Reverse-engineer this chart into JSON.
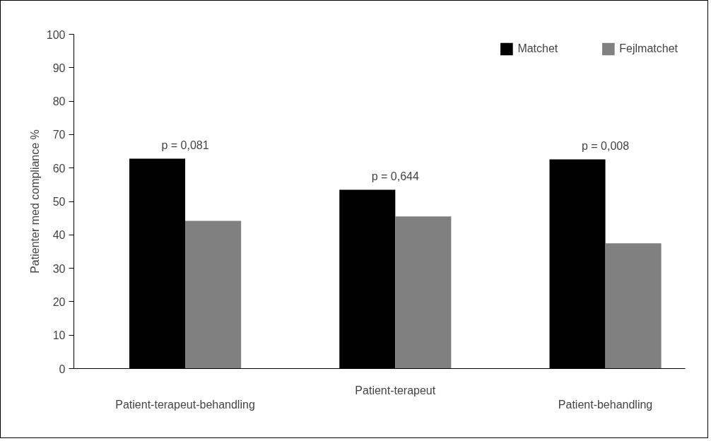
{
  "chart_data": {
    "type": "bar",
    "ylabel": "Patienter med compliance %",
    "categories": [
      "Patient-terapeut-behandling",
      "Patient-terapeut",
      "Patient-behandling"
    ],
    "series": [
      {
        "name": "Matchet",
        "color": "#000000",
        "values": [
          62.8,
          53.5,
          62.6
        ]
      },
      {
        "name": "Fejlmatchet",
        "color": "#808080",
        "values": [
          44.2,
          45.5,
          37.5
        ]
      }
    ],
    "ylim": [
      0,
      100
    ],
    "yticks": [
      0,
      10,
      20,
      30,
      40,
      50,
      60,
      70,
      80,
      90,
      100
    ],
    "grid": false,
    "legend": "top right",
    "annotations": [
      {
        "text": "p = 0,081",
        "x": "Patient-terapeut-behandling",
        "y": 62.8
      },
      {
        "text": "p = 0,644",
        "x": "Patient-terapeut",
        "y": 53.5
      },
      {
        "text": "p = 0,008",
        "x": "Patient-behandling",
        "y": 62.6
      }
    ]
  }
}
